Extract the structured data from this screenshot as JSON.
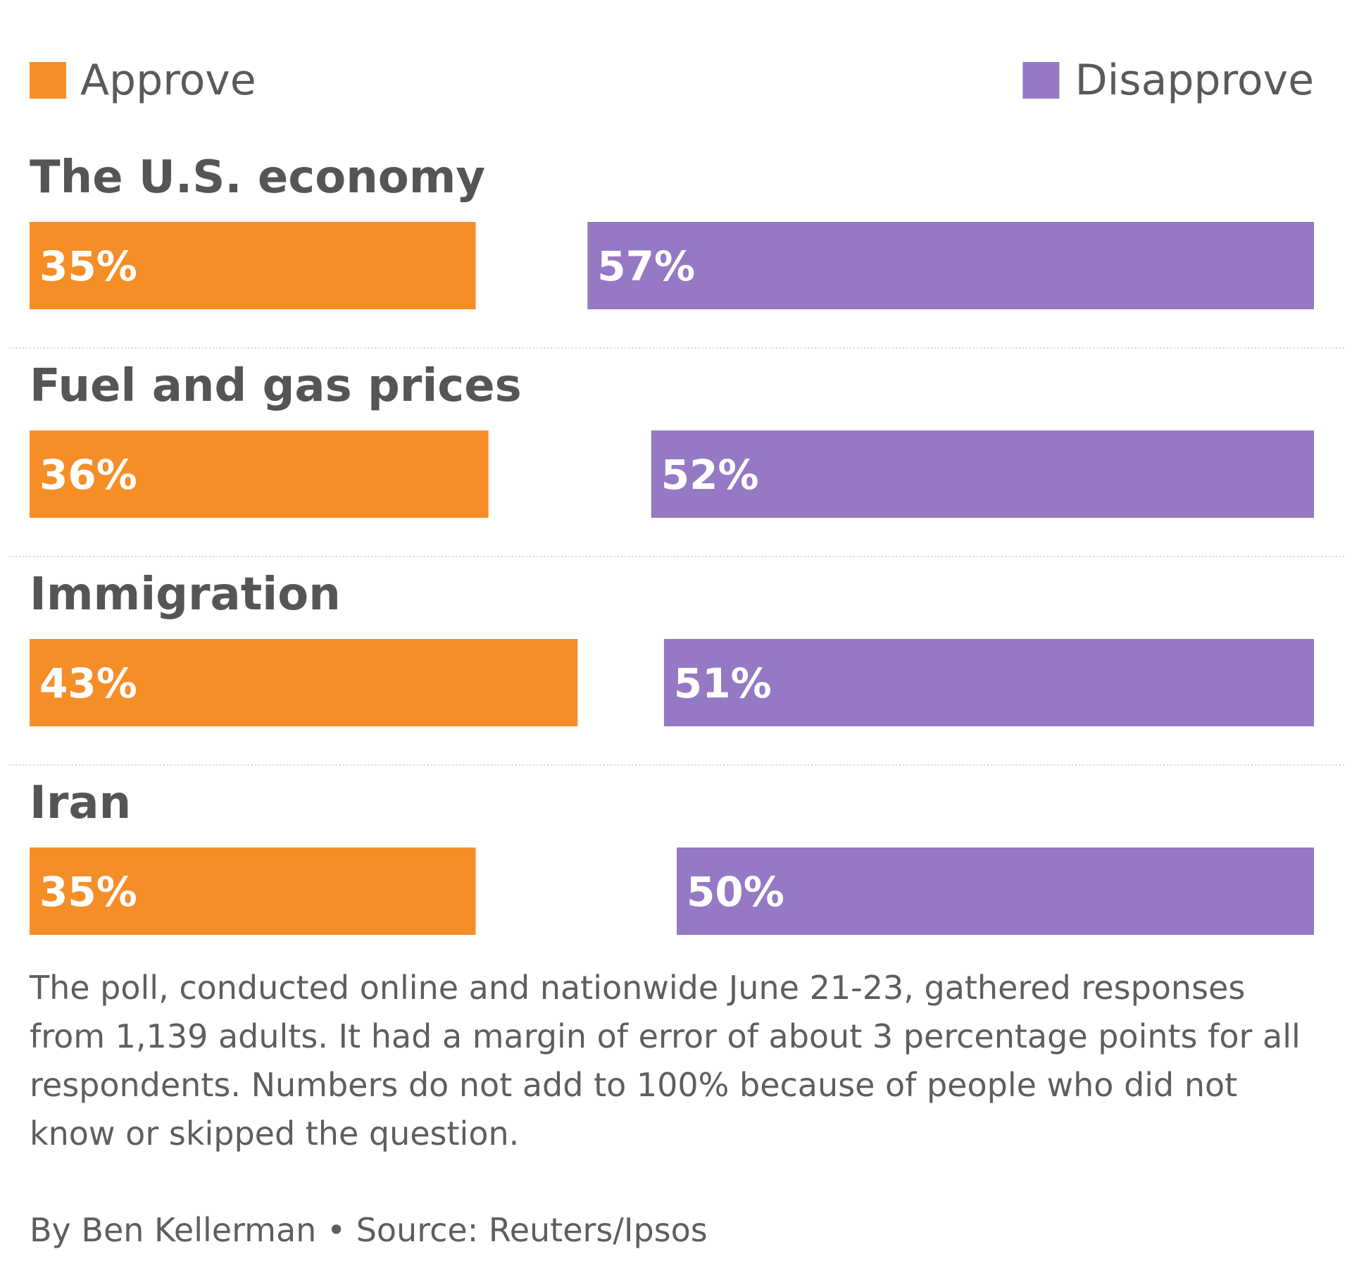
{
  "chart_data": {
    "type": "bar",
    "categories": [
      "The U.S. economy",
      "Fuel and gas prices",
      "Immigration",
      "Iran"
    ],
    "series": [
      {
        "name": "Approve",
        "color": "#f68e28",
        "values": [
          35,
          36,
          43,
          35
        ],
        "labels": [
          "35%",
          "36%",
          "43%",
          "35%"
        ]
      },
      {
        "name": "Disapprove",
        "color": "#9579c4",
        "values": [
          57,
          52,
          51,
          50
        ],
        "labels": [
          "57%",
          "52%",
          "51%",
          "50%"
        ]
      }
    ],
    "value_unit": "%",
    "legend_position": "top"
  },
  "footnote": "The poll, conducted online and nationwide June 21-23, gathered responses from 1,139 adults. It had a margin of error of about 3 percentage points for all respondents. Numbers do not add to 100% because of people who did not know or skipped the question.",
  "credit": "By Ben Kellerman • Source: Reuters/Ipsos"
}
